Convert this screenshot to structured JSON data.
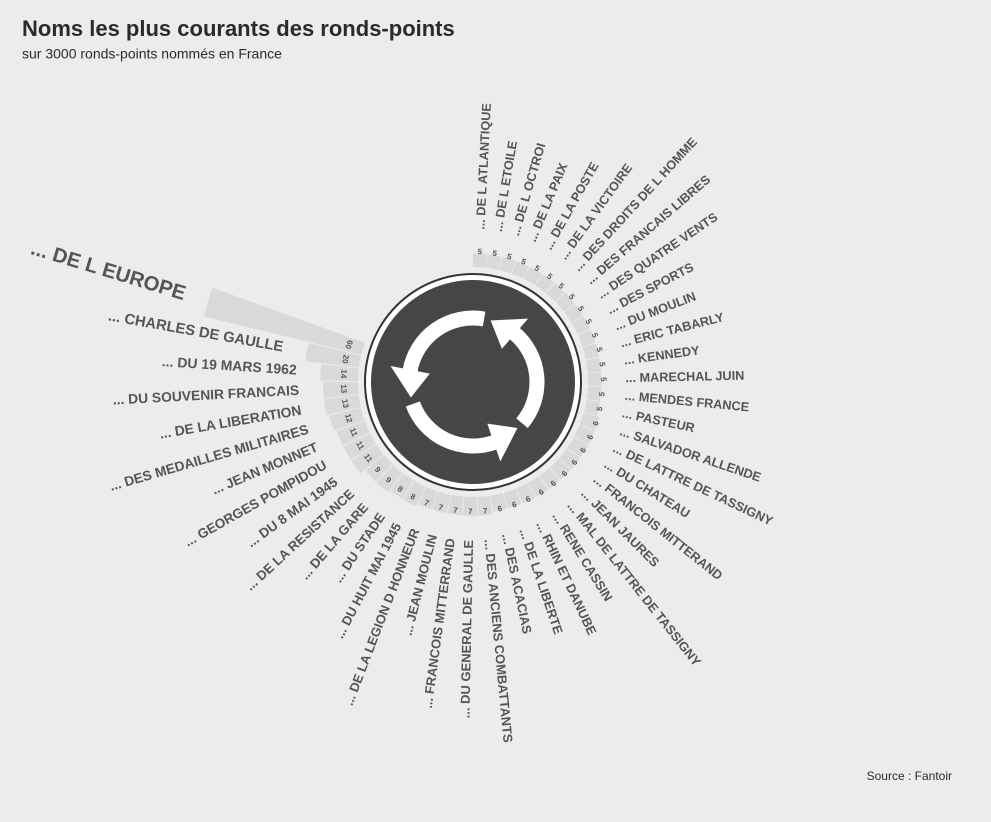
{
  "chart_data": {
    "type": "radial_bar",
    "title": "Noms les plus courants des ronds-points",
    "subtitle": "sur 3000 ronds-points nommés en France",
    "source": "Source : Fantoir",
    "color": "#d9d9d9",
    "categories": [
      "... DE L ATLANTIQUE",
      "... DE L ETOILE",
      "... DE L OCTROI",
      "... DE LA PAIX",
      "... DE LA POSTE",
      "... DE LA VICTOIRE",
      "... DES DROITS DE L HOMME",
      "... DES FRANCAIS LIBRES",
      "... DES QUATRE VENTS",
      "... DES SPORTS",
      "... DU MOULIN",
      "... ERIC TABARLY",
      "... KENNEDY",
      "... MARECHAL JUIN",
      "... MENDES FRANCE",
      "... PASTEUR",
      "... SALVADOR ALLENDE",
      "... DE LATTRE DE TASSIGNY",
      "... DU CHATEAU",
      "... FRANCOIS MITTERAND",
      "... JEAN JAURES",
      "... MAL DE LATTRE DE TASSIGNY",
      "... RENE CASSIN",
      "... RHIN ET DANUBE",
      "... DE LA LIBERTE",
      "... DES ACACIAS",
      "... DES ANCIENS COMBATTANTS",
      "... DU GENERAL DE GAULLE",
      "... FRANCOIS MITTERRAND",
      "... JEAN MOULIN",
      "... DE LA LEGION D HONNEUR",
      "... DU HUIT MAI 1945",
      "... DU STADE",
      "... DE LA GARE",
      "... DE LA RESISTANCE",
      "... DU 8 MAI 1945",
      "... GEORGES POMPIDOU",
      "... JEAN MONNET",
      "... DES MEDAILLES MILITAIRES",
      "... DE LA LIBERATION",
      "... DU SOUVENIR FRANCAIS",
      "... DU 19 MARS 1962",
      "... CHARLES DE GAULLE",
      "... DE L EUROPE"
    ],
    "values": [
      5,
      5,
      5,
      5,
      5,
      5,
      5,
      5,
      5,
      5,
      5,
      5,
      5,
      5,
      5,
      5,
      6,
      6,
      6,
      6,
      6,
      6,
      6,
      6,
      6,
      6,
      7,
      7,
      7,
      7,
      7,
      8,
      8,
      9,
      9,
      11,
      11,
      11,
      12,
      13,
      13,
      14,
      20,
      60
    ]
  }
}
